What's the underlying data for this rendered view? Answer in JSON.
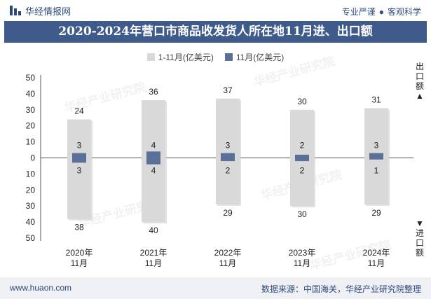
{
  "header": {
    "brand": "华经情报网",
    "tagline_left": "专业严谨",
    "tagline_sep": "●",
    "tagline_right": "客观科学"
  },
  "footer": {
    "site": "www.huaon.com",
    "source": "数据来源：中国海关，华经产业研究院整理"
  },
  "watermark": "华经产业研究院",
  "colors": {
    "title_bg": "#3f5b8c",
    "ytd_bar": "#d9d9d9",
    "month_bar": "#5a7099"
  },
  "chart_data": {
    "type": "bar",
    "title": "2020-2024年营口市商品收发货人所在地11月进、出口额",
    "categories": [
      "2020年\n11月",
      "2021年\n11月",
      "2022年\n11月",
      "2023年\n11月",
      "2024年\n11月"
    ],
    "axis_top_label": "出口额▲",
    "axis_bottom_label": "▼进口额",
    "yticks": [
      "50",
      "40",
      "30",
      "20",
      "10",
      "0",
      "10",
      "20",
      "30",
      "40",
      "50"
    ],
    "ylim": [
      -50,
      50
    ],
    "legend_position": "top-center",
    "series": [
      {
        "name": "1-11月(亿美元)",
        "export": [
          24,
          36,
          37,
          30,
          31
        ],
        "import": [
          38,
          40,
          29,
          30,
          29
        ]
      },
      {
        "name": "11月(亿美元)",
        "export": [
          3,
          4,
          3,
          2,
          3
        ],
        "import": [
          3,
          4,
          2,
          2,
          1
        ]
      }
    ]
  }
}
